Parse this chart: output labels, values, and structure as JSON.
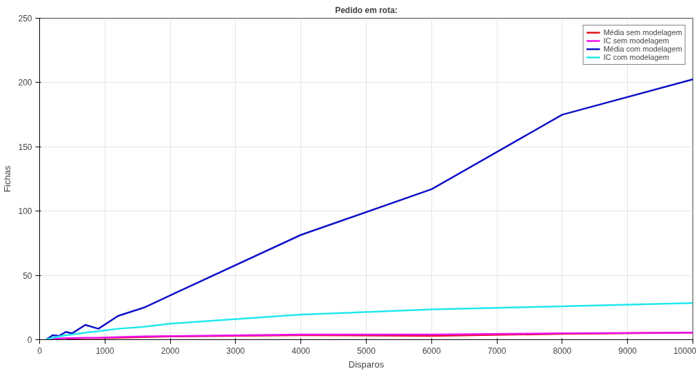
{
  "chart_data": {
    "type": "line",
    "title": "Pedido em rota:",
    "xlabel": "Disparos",
    "ylabel": "Fichas",
    "x": [
      100,
      200,
      300,
      400,
      500,
      700,
      900,
      1200,
      1600,
      2000,
      4000,
      6000,
      8000,
      10000
    ],
    "series": [
      {
        "name": "Média sem modelagem",
        "color": "#e0101a",
        "values": [
          null,
          null,
          null,
          1,
          1,
          1.2,
          1.2,
          1.5,
          2,
          2.5,
          3.5,
          3,
          4.5,
          5.5
        ]
      },
      {
        "name": "IC sem modelagem",
        "color": "#ee10ee",
        "values": [
          0,
          0.8,
          1,
          1.2,
          1.2,
          1.5,
          1.5,
          2,
          2.5,
          2.8,
          4,
          4,
          5,
          5.5
        ]
      },
      {
        "name": "Média com modelagem",
        "color": "#1010c8",
        "values": [
          0,
          3.5,
          3,
          6,
          5,
          11.5,
          8.5,
          18.5,
          25,
          34.5,
          81.5,
          117,
          175,
          202.5
        ]
      },
      {
        "name": "IC com modelagem",
        "color": "#20e8ee",
        "values": [
          0,
          1.5,
          2.5,
          3.5,
          4,
          5.5,
          6.5,
          8.5,
          10,
          12.5,
          19.5,
          23.5,
          26,
          28.5
        ]
      }
    ],
    "xlim": [
      0,
      10000
    ],
    "ylim": [
      0,
      250
    ],
    "xticks": [
      0,
      1000,
      2000,
      3000,
      4000,
      5000,
      6000,
      7000,
      8000,
      9000,
      10000
    ],
    "yticks": [
      0,
      50,
      100,
      150,
      200,
      250
    ],
    "grid": true,
    "legend": "top right",
    "line_style": "solid",
    "marker": "none"
  }
}
